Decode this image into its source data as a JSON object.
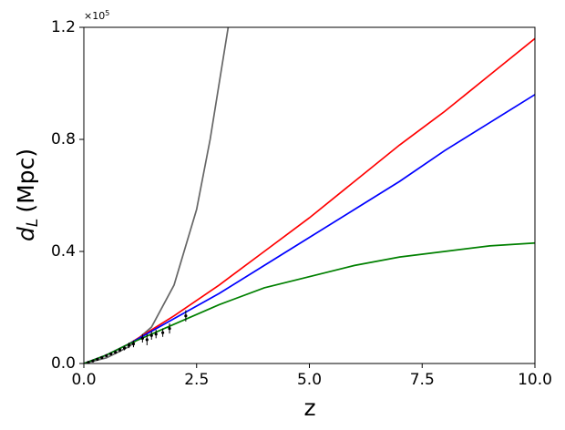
{
  "chart_data": {
    "type": "line",
    "xlabel": "z",
    "ylabel": {
      "symbol": "d",
      "subscript": "L",
      "unit": "(Mpc)"
    },
    "y_offset": {
      "base": "×10",
      "exponent": "5"
    },
    "xlim": [
      0,
      10
    ],
    "ylim": [
      0,
      1.2
    ],
    "xticks": [
      {
        "value": 0,
        "label": "0.0"
      },
      2.5,
      {
        "value": 5,
        "label": "5.0"
      },
      7.5,
      {
        "value": 10,
        "label": "10.0"
      }
    ],
    "yticks": [
      {
        "value": 0,
        "label": "0.0"
      },
      0.4,
      0.8,
      1.2
    ],
    "series": [
      {
        "color": "#666666",
        "x": [
          0,
          0.5,
          1,
          1.5,
          2,
          2.5,
          2.8,
          3.0,
          3.2
        ],
        "values": [
          0,
          0.02,
          0.06,
          0.13,
          0.28,
          0.55,
          0.8,
          1.0,
          1.2
        ]
      },
      {
        "color": "#ff0000",
        "x": [
          0,
          0.5,
          1,
          2,
          3,
          4,
          5,
          6,
          7,
          8,
          9,
          10
        ],
        "values": [
          0,
          0.03,
          0.07,
          0.17,
          0.28,
          0.4,
          0.52,
          0.65,
          0.78,
          0.9,
          1.03,
          1.16
        ]
      },
      {
        "color": "#0000ff",
        "x": [
          0,
          0.5,
          1,
          2,
          3,
          4,
          5,
          6,
          7,
          8,
          9,
          10
        ],
        "values": [
          0,
          0.03,
          0.07,
          0.16,
          0.25,
          0.35,
          0.45,
          0.55,
          0.65,
          0.76,
          0.86,
          0.96
        ]
      },
      {
        "color": "#008000",
        "x": [
          0,
          0.5,
          1,
          2,
          3,
          4,
          5,
          6,
          7,
          8,
          9,
          10
        ],
        "values": [
          0,
          0.03,
          0.07,
          0.14,
          0.21,
          0.27,
          0.31,
          0.35,
          0.38,
          0.4,
          0.42,
          0.43
        ]
      }
    ],
    "points": {
      "color": "#000000",
      "x": [
        0.1,
        0.2,
        0.3,
        0.4,
        0.5,
        0.6,
        0.7,
        0.8,
        0.9,
        1.0,
        1.1,
        1.3,
        1.4,
        1.5,
        1.6,
        1.75,
        1.9,
        2.26
      ],
      "values": [
        0.004,
        0.009,
        0.015,
        0.021,
        0.028,
        0.034,
        0.04,
        0.048,
        0.055,
        0.065,
        0.07,
        0.09,
        0.085,
        0.1,
        0.105,
        0.11,
        0.125,
        0.17
      ],
      "errors": [
        0.002,
        0.003,
        0.004,
        0.004,
        0.005,
        0.005,
        0.006,
        0.007,
        0.008,
        0.01,
        0.012,
        0.015,
        0.02,
        0.015,
        0.015,
        0.015,
        0.018,
        0.02
      ]
    }
  }
}
